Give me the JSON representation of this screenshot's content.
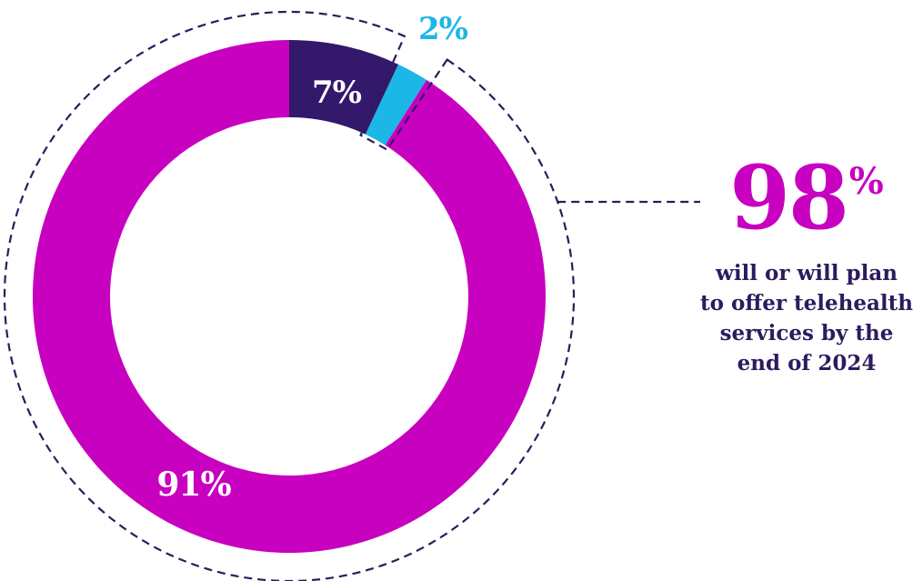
{
  "chart_data": {
    "type": "donut",
    "values": [
      7,
      2,
      91
    ],
    "labels": [
      "7%",
      "2%",
      "91%"
    ],
    "colors": [
      "#33186b",
      "#1bb7e6",
      "#c800c0"
    ]
  },
  "callout": {
    "value": "98",
    "symbol": "%",
    "lines": [
      "will or will plan",
      "to offer telehealth",
      "services by the",
      "end of 2024"
    ],
    "color": "#c800c0",
    "text_color": "#2d1b5e"
  },
  "guide_color": "#2d1b5e"
}
